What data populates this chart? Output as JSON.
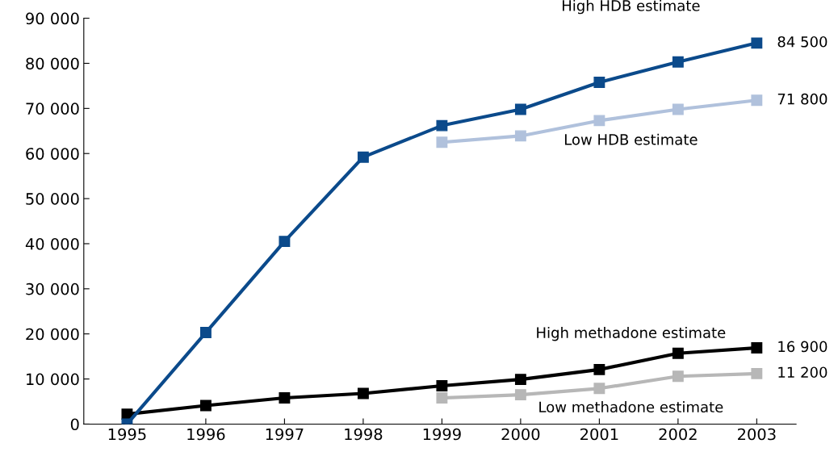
{
  "chart_data": {
    "type": "line",
    "categories": [
      "1995",
      "1996",
      "1997",
      "1998",
      "1999",
      "2000",
      "2001",
      "2002",
      "2003"
    ],
    "series": [
      {
        "name": "High HDB estimate",
        "color": "#0b4a8b",
        "values": [
          0,
          20300,
          40500,
          59200,
          66200,
          69800,
          75800,
          80300,
          84500
        ],
        "value_labels": [
          null,
          null,
          null,
          null,
          null,
          null,
          null,
          null,
          "84 500"
        ]
      },
      {
        "name": "Low HDB estimate",
        "color": "#b0c1dc",
        "values": [
          null,
          null,
          null,
          null,
          62500,
          63900,
          67300,
          69800,
          71800
        ],
        "value_labels": [
          null,
          null,
          null,
          null,
          null,
          null,
          null,
          null,
          "71 800"
        ]
      },
      {
        "name": "High methadone estimate",
        "color": "#000000",
        "values": [
          2200,
          4100,
          5800,
          6800,
          8500,
          9900,
          12100,
          15700,
          16900
        ],
        "value_labels": [
          null,
          null,
          null,
          null,
          null,
          null,
          null,
          null,
          "16 900"
        ]
      },
      {
        "name": "Low methadone estimate",
        "color": "#b7b7b7",
        "values": [
          null,
          null,
          null,
          null,
          5800,
          6500,
          7900,
          10600,
          11200
        ],
        "value_labels": [
          null,
          null,
          null,
          null,
          null,
          null,
          null,
          null,
          "11 200"
        ]
      }
    ],
    "ylim": [
      0,
      90000
    ],
    "yticks": [
      {
        "value": 0,
        "label": "0"
      },
      {
        "value": 10000,
        "label": "10 000"
      },
      {
        "value": 20000,
        "label": "20 000"
      },
      {
        "value": 30000,
        "label": "30 000"
      },
      {
        "value": 40000,
        "label": "40 000"
      },
      {
        "value": 50000,
        "label": "50 000"
      },
      {
        "value": 60000,
        "label": "60 000"
      },
      {
        "value": 70000,
        "label": "70 000"
      },
      {
        "value": 80000,
        "label": "80 000"
      },
      {
        "value": 90000,
        "label": "90 000"
      }
    ],
    "marker": "square",
    "line_style": "solid",
    "grid": false,
    "legend": false
  }
}
